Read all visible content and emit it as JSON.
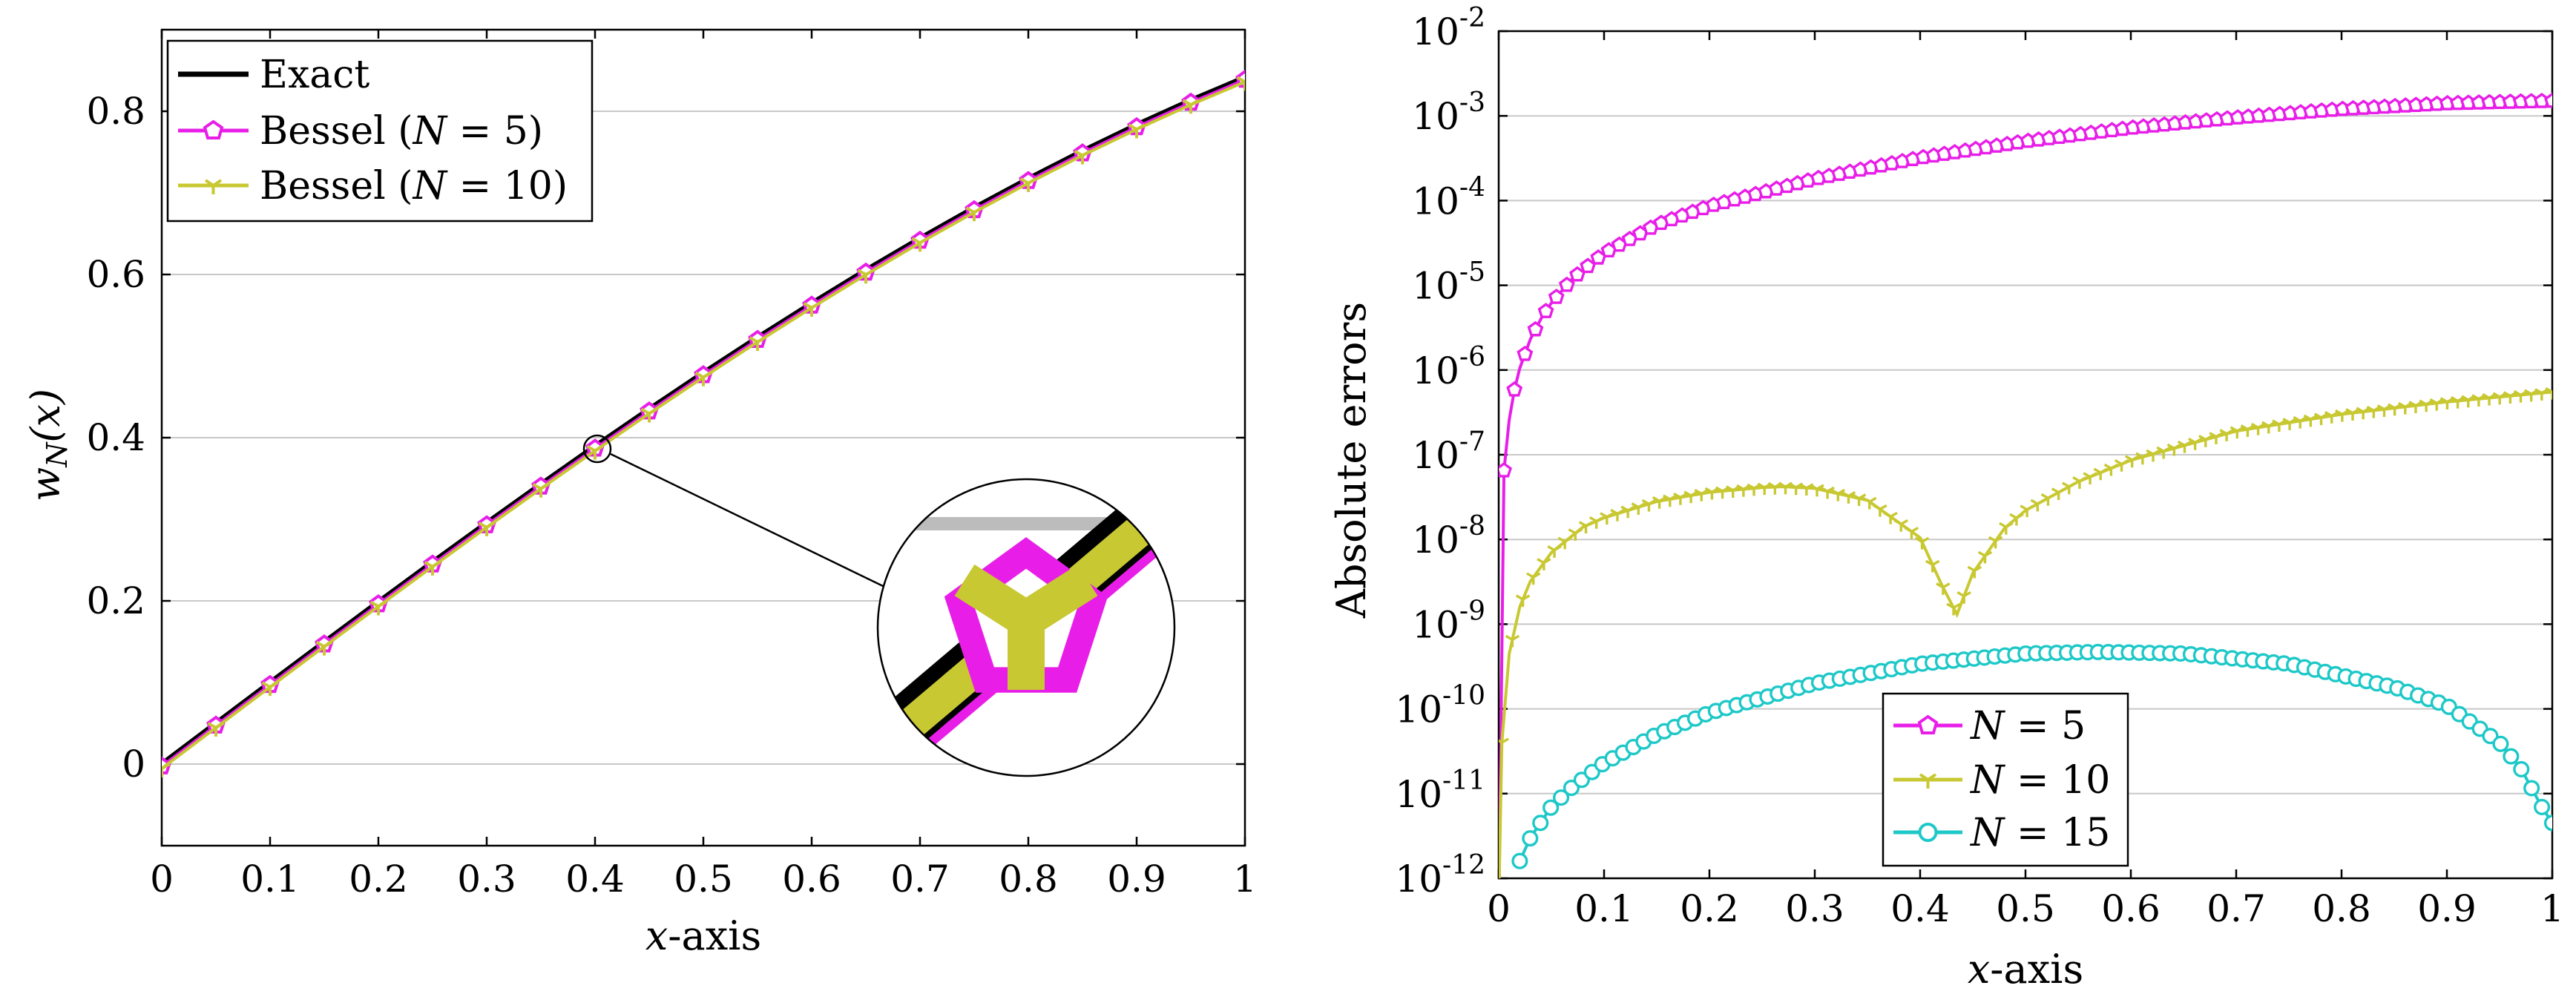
{
  "chart_data": [
    {
      "type": "line",
      "xlabel_var": "x",
      "xlabel_rest": "-axis",
      "ylabel_main": "w",
      "ylabel_sub": "N",
      "ylabel_arg": "(x)",
      "xlim": [
        0,
        1
      ],
      "ylim": [
        -0.1,
        0.9
      ],
      "xticks": [
        "0",
        "0.1",
        "0.2",
        "0.3",
        "0.4",
        "0.5",
        "0.6",
        "0.7",
        "0.8",
        "0.9",
        "1"
      ],
      "yticks": [
        "0",
        "0.2",
        "0.4",
        "0.6",
        "0.8"
      ],
      "grid": "horizontal",
      "legend_position": "top-left",
      "series": [
        {
          "name": "Exact",
          "label_plain": "Exact",
          "color": "#000000",
          "marker": "none",
          "x": [
            0,
            0.05,
            0.1,
            0.15,
            0.2,
            0.25,
            0.3,
            0.35,
            0.4,
            0.45,
            0.5,
            0.55,
            0.6,
            0.65,
            0.7,
            0.75,
            0.8,
            0.85,
            0.9,
            0.95,
            1
          ],
          "y": [
            0,
            0.04998,
            0.09983,
            0.14944,
            0.19867,
            0.2474,
            0.29552,
            0.3429,
            0.38942,
            0.43497,
            0.47943,
            0.52269,
            0.56464,
            0.60519,
            0.64422,
            0.68164,
            0.71736,
            0.75128,
            0.78333,
            0.81342,
            0.84147
          ]
        },
        {
          "name": "Bessel (N = 5)",
          "label_pre": "Bessel (",
          "label_var": "N",
          "label_post": " = 5)",
          "color": "#e81ee8",
          "marker": "pentagon",
          "x": [
            0,
            0.05,
            0.1,
            0.15,
            0.2,
            0.25,
            0.3,
            0.35,
            0.4,
            0.45,
            0.5,
            0.55,
            0.6,
            0.65,
            0.7,
            0.75,
            0.8,
            0.85,
            0.9,
            0.95,
            1
          ],
          "y": [
            0,
            0.04998,
            0.09983,
            0.14944,
            0.19867,
            0.2474,
            0.29552,
            0.3429,
            0.38942,
            0.43497,
            0.47943,
            0.52269,
            0.56464,
            0.60519,
            0.64422,
            0.68164,
            0.71736,
            0.75128,
            0.78333,
            0.81342,
            0.84147
          ]
        },
        {
          "name": "Bessel (N = 10)",
          "label_pre": "Bessel (",
          "label_var": "N",
          "label_post": " = 10)",
          "color": "#c8c832",
          "marker": "tri",
          "x": [
            0,
            0.05,
            0.1,
            0.15,
            0.2,
            0.25,
            0.3,
            0.35,
            0.4,
            0.45,
            0.5,
            0.55,
            0.6,
            0.65,
            0.7,
            0.75,
            0.8,
            0.85,
            0.9,
            0.95,
            1
          ],
          "y": [
            0,
            0.04998,
            0.09983,
            0.14944,
            0.19867,
            0.2474,
            0.29552,
            0.3429,
            0.38942,
            0.43497,
            0.47943,
            0.52269,
            0.56464,
            0.60519,
            0.64422,
            0.68164,
            0.71736,
            0.75128,
            0.78333,
            0.81342,
            0.84147
          ]
        }
      ],
      "inset": {
        "type": "zoom",
        "center": {
          "x": 0.4,
          "y": 0.389
        }
      }
    },
    {
      "type": "line",
      "yscale": "log",
      "xlabel_var": "x",
      "xlabel_rest": "-axis",
      "ylabel": "Absolute errors",
      "xlim": [
        0,
        1
      ],
      "ylim_exp": [
        -12,
        -2
      ],
      "xticks": [
        "0",
        "0.1",
        "0.2",
        "0.3",
        "0.4",
        "0.5",
        "0.6",
        "0.7",
        "0.8",
        "0.9",
        "1"
      ],
      "yticks_exp": [
        "-2",
        "-3",
        "-4",
        "-5",
        "-6",
        "-7",
        "-8",
        "-9",
        "-10",
        "-11",
        "-12"
      ],
      "ytick_base": "10",
      "grid": "horizontal",
      "legend_position": "bottom-center",
      "series": [
        {
          "name": "N = 5",
          "label_var": "N",
          "label_post": " = 5",
          "color": "#e81ee8",
          "marker": "pentagon",
          "x": [
            0.005,
            0.01,
            0.015,
            0.02,
            0.03,
            0.04,
            0.05,
            0.07,
            0.1,
            0.15,
            0.2,
            0.3,
            0.4,
            0.5,
            0.6,
            0.7,
            0.8,
            0.9,
            1
          ],
          "y": [
            6.5e-08,
            2.6e-07,
            5.9e-07,
            1.05e-06,
            2.3e-06,
            4e-06,
            6.2e-06,
            1.2e-05,
            2.4e-05,
            5.2e-05,
            8.6e-05,
            0.00018,
            0.00032,
            0.0005,
            0.00072,
            0.00095,
            0.0012,
            0.0014,
            0.0015
          ]
        },
        {
          "name": "N = 10",
          "label_var": "N",
          "label_post": " = 10",
          "color": "#c8c832",
          "marker": "tri",
          "x": [
            0.003,
            0.01,
            0.02,
            0.03,
            0.05,
            0.08,
            0.1,
            0.15,
            0.2,
            0.25,
            0.27,
            0.3,
            0.35,
            0.4,
            0.42,
            0.435,
            0.45,
            0.48,
            0.5,
            0.55,
            0.6,
            0.7,
            0.8,
            0.9,
            1
          ],
          "y": [
            4e-11,
            4.5e-10,
            1.6e-09,
            3.2e-09,
            7e-09,
            1.4e-08,
            1.8e-08,
            2.8e-08,
            3.6e-08,
            4.1e-08,
            4.2e-08,
            4e-08,
            2.9e-08,
            1.05e-08,
            3e-09,
            1.3e-09,
            4e-09,
            1.35e-08,
            2.2e-08,
            4.8e-08,
            8.6e-08,
            1.9e-07,
            3e-07,
            4.2e-07,
            5.5e-07
          ]
        },
        {
          "name": "N = 15",
          "label_var": "N",
          "label_post": " = 15",
          "color": "#1ec8c8",
          "marker": "circle",
          "x": [
            0.02,
            0.03,
            0.05,
            0.07,
            0.1,
            0.15,
            0.2,
            0.3,
            0.4,
            0.5,
            0.57,
            0.65,
            0.75,
            0.85,
            0.9,
            0.95,
            0.97,
            0.99,
            1
          ],
          "y": [
            1.6e-12,
            3e-12,
            7e-12,
            1.2e-11,
            2.3e-11,
            5e-11,
            9e-11,
            2e-10,
            3.4e-10,
            4.5e-10,
            4.7e-10,
            4.5e-10,
            3.4e-10,
            1.8e-10,
            1.1e-10,
            4e-11,
            2e-11,
            7e-12,
            4.5e-12
          ]
        }
      ]
    }
  ]
}
